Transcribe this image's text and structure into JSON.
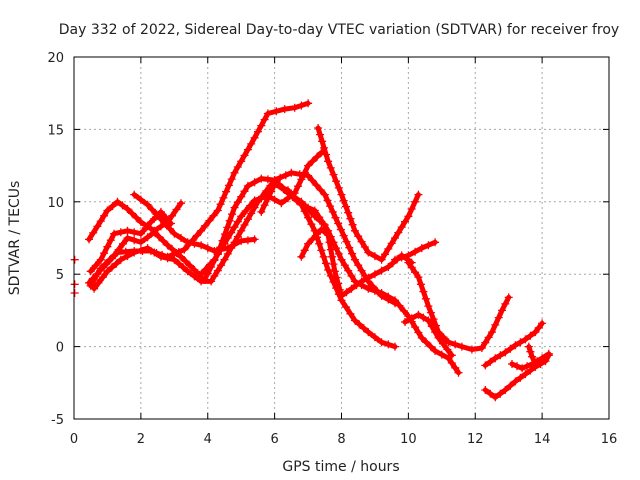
{
  "chart_data": {
    "type": "scatter",
    "title": "Day 332 of 2022, Sidereal Day-to-day VTEC variation (SDTVAR) for receiver froy",
    "xlabel": "GPS time / hours",
    "ylabel": "SDTVAR / TECUs",
    "xlim": [
      0,
      16
    ],
    "ylim": [
      -5,
      20
    ],
    "xticks": [
      0,
      2,
      4,
      6,
      8,
      10,
      12,
      14,
      16
    ],
    "yticks": [
      -5,
      0,
      5,
      10,
      15,
      20
    ],
    "grid": true,
    "legend": "none",
    "marker": "+",
    "color": "#ff0000",
    "series": [
      {
        "name": "track-1",
        "x": [
          0.45,
          0.8,
          1.3,
          1.8,
          2.3,
          2.8,
          3.3,
          3.8,
          4.3,
          4.8,
          5.3,
          5.8,
          6.3,
          6.6,
          7.0
        ],
        "y": [
          4.4,
          5.3,
          6.5,
          6.6,
          6.6,
          6.2,
          6.7,
          8.0,
          9.4,
          12.0,
          14.0,
          16.1,
          16.4,
          16.5,
          16.8
        ]
      },
      {
        "name": "track-2",
        "x": [
          0.45,
          0.7,
          1.0,
          1.3,
          1.6,
          2.0,
          2.4,
          2.8,
          3.2
        ],
        "y": [
          7.4,
          8.3,
          9.4,
          10.0,
          9.5,
          8.6,
          8.0,
          8.6,
          9.9
        ]
      },
      {
        "name": "track-3",
        "x": [
          0.5,
          0.8,
          1.2,
          1.6,
          2.0,
          2.3,
          2.6,
          2.9
        ],
        "y": [
          5.2,
          6.0,
          7.8,
          8.0,
          7.8,
          8.6,
          9.3,
          8.5
        ]
      },
      {
        "name": "track-4",
        "x": [
          0.5,
          0.8,
          1.2,
          1.6,
          2.0,
          2.4,
          2.8,
          3.2,
          3.6,
          3.9,
          4.3,
          4.8,
          5.2,
          5.6,
          6.0,
          6.4,
          6.8,
          7.2,
          7.5
        ],
        "y": [
          4.2,
          5.4,
          6.3,
          7.5,
          7.2,
          7.9,
          7.0,
          6.2,
          5.3,
          4.6,
          6.4,
          9.6,
          11.1,
          11.6,
          11.5,
          10.6,
          10.0,
          9.0,
          8.4
        ]
      },
      {
        "name": "track-5",
        "x": [
          0.6,
          1.0,
          1.4,
          1.8,
          2.2,
          2.6,
          3.0,
          3.4,
          3.8,
          4.1,
          4.5,
          5.0,
          5.5,
          6.0,
          6.5,
          7.0,
          7.5,
          7.9,
          8.4,
          8.8,
          9.2,
          9.6
        ],
        "y": [
          4.0,
          5.2,
          6.0,
          6.5,
          6.8,
          6.2,
          6.0,
          5.2,
          4.5,
          4.5,
          6.0,
          8.0,
          10.0,
          11.5,
          12.0,
          11.8,
          10.5,
          8.5,
          6.0,
          4.5,
          3.5,
          3.0
        ]
      },
      {
        "name": "track-6",
        "x": [
          1.8,
          2.2,
          2.6,
          3.0,
          3.4,
          3.8,
          4.2,
          4.6,
          5.0,
          5.4
        ],
        "y": [
          10.5,
          9.8,
          8.8,
          7.8,
          7.2,
          7.0,
          6.6,
          6.8,
          7.3,
          7.4
        ]
      },
      {
        "name": "track-7",
        "x": [
          3.8,
          4.2,
          4.6,
          5.0,
          5.4,
          5.8,
          6.2,
          6.6,
          7.0,
          7.4
        ],
        "y": [
          5.0,
          6.0,
          7.5,
          9.0,
          10.1,
          10.4,
          9.9,
          10.6,
          12.5,
          13.4
        ]
      },
      {
        "name": "track-8",
        "x": [
          5.6,
          6.0,
          6.4,
          6.8,
          7.2,
          7.6,
          8.0,
          8.4,
          8.8,
          9.2,
          9.6
        ],
        "y": [
          9.3,
          11.2,
          10.8,
          9.8,
          8.0,
          5.3,
          3.2,
          1.8,
          1.0,
          0.3,
          0.0
        ]
      },
      {
        "name": "track-9",
        "x": [
          6.0,
          6.4,
          6.8,
          7.2,
          7.6,
          8.0,
          8.4,
          8.8,
          9.2,
          9.6,
          10.0,
          10.4,
          10.8,
          11.2,
          11.5
        ],
        "y": [
          11.4,
          10.6,
          9.8,
          9.4,
          8.0,
          6.0,
          4.5,
          4.0,
          3.7,
          3.2,
          2.1,
          0.6,
          -0.3,
          -0.8,
          -1.8
        ]
      },
      {
        "name": "track-10",
        "x": [
          6.8,
          7.0,
          7.4,
          7.6,
          7.8,
          8.0,
          8.3,
          8.6,
          9.0,
          9.4,
          9.8,
          10.1
        ],
        "y": [
          6.2,
          7.1,
          8.1,
          7.7,
          5.2,
          3.5,
          4.0,
          4.5,
          5.0,
          5.5,
          6.3,
          5.8
        ]
      },
      {
        "name": "track-11",
        "x": [
          7.3,
          7.6,
          8.0,
          8.4,
          8.8,
          9.2,
          9.6,
          10.0,
          10.3
        ],
        "y": [
          15.1,
          12.8,
          10.5,
          8.0,
          6.5,
          6.0,
          7.5,
          9.0,
          10.5
        ]
      },
      {
        "name": "track-12",
        "x": [
          9.6,
          10.0,
          10.4,
          10.8
        ],
        "y": [
          6.0,
          6.3,
          6.8,
          7.2
        ]
      },
      {
        "name": "track-13",
        "x": [
          10.0,
          10.3,
          10.6,
          10.9,
          11.2,
          11.6,
          11.9,
          12.2,
          12.5,
          12.8,
          13.0
        ],
        "y": [
          5.8,
          4.8,
          2.8,
          1.0,
          0.3,
          0.0,
          -0.2,
          -0.1,
          1.0,
          2.5,
          3.4
        ]
      },
      {
        "name": "track-14",
        "x": [
          9.9,
          10.3,
          10.6,
          10.9,
          11.3
        ],
        "y": [
          1.7,
          2.2,
          1.8,
          0.6,
          -0.6
        ]
      },
      {
        "name": "track-15",
        "x": [
          12.3,
          12.6,
          12.9,
          13.2,
          13.5,
          13.8,
          14.0
        ],
        "y": [
          -1.3,
          -0.8,
          -0.4,
          0.1,
          0.5,
          1.0,
          1.6
        ]
      },
      {
        "name": "track-16",
        "x": [
          12.3,
          12.6,
          12.9,
          13.2,
          13.5,
          13.8,
          14.1,
          14.2
        ],
        "y": [
          -3.0,
          -3.5,
          -3.0,
          -2.4,
          -1.9,
          -1.4,
          -1.0,
          -0.6
        ]
      },
      {
        "name": "track-17",
        "x": [
          13.1,
          13.4,
          13.7,
          14.0,
          14.2
        ],
        "y": [
          -1.2,
          -1.5,
          -1.2,
          -0.8,
          -0.5
        ]
      },
      {
        "name": "track-18",
        "x": [
          13.6,
          13.7,
          13.8,
          14.0
        ],
        "y": [
          0.0,
          -0.7,
          -1.2,
          -0.9
        ]
      },
      {
        "name": "isolated",
        "x": [
          0.02,
          0.02,
          0.02
        ],
        "y": [
          6.0,
          4.3,
          3.7
        ]
      }
    ]
  }
}
